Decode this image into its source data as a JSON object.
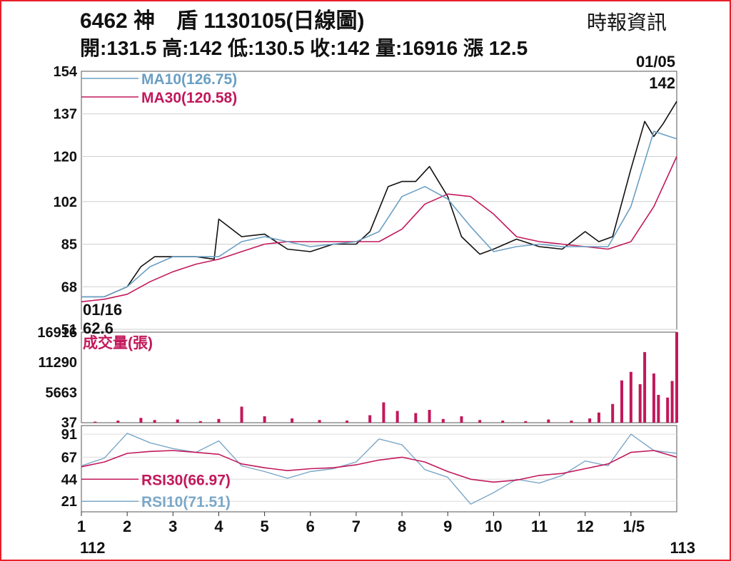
{
  "header": {
    "title": "6462 神　盾 1130105(日線圖)",
    "source": "時報資訊",
    "ohlc": "開:131.5 高:142 低:130.5 收:142 量:16916 漲 12.5"
  },
  "colors": {
    "frame": "#e8202a",
    "ma10": "#6a9fc4",
    "ma30": "#c2185b",
    "volume": "#c2185b",
    "rsi30": "#c2185b",
    "rsi10": "#7ba7c8",
    "candle": "#111111",
    "candle_up": "#c2185b"
  },
  "chart_data": [
    {
      "type": "line",
      "panel": "price",
      "yticks": [
        "154",
        "137",
        "120",
        "102",
        "85",
        "68",
        "51"
      ],
      "ylim": [
        51,
        154
      ],
      "grid": true,
      "legend": [
        "MA10(126.75)",
        "MA30(120.58)"
      ],
      "annotations": {
        "start_date": "01/16",
        "start_price": "62.6",
        "end_date": "01/05",
        "end_price": "142"
      },
      "x_months": [
        "1",
        "2",
        "3",
        "4",
        "5",
        "6",
        "7",
        "8",
        "9",
        "10",
        "11",
        "12",
        "1/5"
      ],
      "x_years": [
        "112",
        "113"
      ],
      "series": [
        {
          "name": "MA10(126.75)",
          "color": "#6a9fc4",
          "x": [
            0,
            0.5,
            1,
            1.5,
            2,
            2.5,
            3,
            3.5,
            4,
            4.5,
            5,
            5.5,
            6,
            6.5,
            7,
            7.5,
            8,
            8.5,
            9,
            9.5,
            10,
            10.5,
            11,
            11.5,
            12,
            12.5,
            13
          ],
          "values": [
            64,
            64,
            68,
            76,
            80,
            80,
            80,
            86,
            88,
            86,
            84,
            85,
            86,
            90,
            104,
            108,
            103,
            92,
            82,
            84,
            85,
            84,
            84,
            84,
            100,
            130,
            127
          ]
        },
        {
          "name": "MA30(120.58)",
          "color": "#c2185b",
          "x": [
            0,
            0.5,
            1,
            1.5,
            2,
            2.5,
            3,
            3.5,
            4,
            4.5,
            5,
            5.5,
            6,
            6.5,
            7,
            7.5,
            8,
            8.5,
            9,
            9.5,
            10,
            10.5,
            11,
            11.5,
            12,
            12.5,
            13
          ],
          "values": [
            62,
            63,
            65,
            70,
            74,
            77,
            79,
            82,
            85,
            86,
            86,
            86,
            86,
            86,
            91,
            101,
            105,
            104,
            97,
            88,
            86,
            85,
            84,
            83,
            86,
            100,
            120
          ]
        },
        {
          "name": "",
          "color": "#111111",
          "x": [
            0,
            0.5,
            1,
            1.3,
            1.6,
            2,
            2.5,
            2.9,
            3,
            3.5,
            4,
            4.5,
            5,
            5.5,
            6,
            6.3,
            6.7,
            7,
            7.3,
            7.6,
            8,
            8.3,
            8.7,
            9,
            9.5,
            10,
            10.5,
            11,
            11.3,
            11.6,
            12,
            12.3,
            12.5,
            12.7,
            13
          ],
          "values": [
            64,
            64,
            68,
            76,
            80,
            80,
            80,
            79,
            95,
            88,
            89,
            83,
            82,
            85,
            85,
            90,
            108,
            110,
            110,
            116,
            104,
            88,
            81,
            83,
            87,
            84,
            83,
            90,
            86,
            88,
            115,
            134,
            128,
            133,
            142
          ]
        }
      ]
    },
    {
      "type": "bar",
      "panel": "volume",
      "title": "成交量(張)",
      "yticks": [
        "16916",
        "11290",
        "5663",
        "37"
      ],
      "ylim": [
        0,
        16916
      ],
      "x": [
        0.3,
        0.8,
        1.3,
        1.6,
        2.1,
        2.6,
        3.0,
        3.5,
        4.0,
        4.6,
        5.2,
        5.8,
        6.3,
        6.6,
        6.9,
        7.3,
        7.6,
        7.9,
        8.3,
        8.7,
        9.2,
        9.7,
        10.2,
        10.7,
        11.1,
        11.3,
        11.6,
        11.8,
        12.0,
        12.2,
        12.3,
        12.5,
        12.6,
        12.8,
        12.9,
        13.0
      ],
      "values": [
        200,
        400,
        900,
        500,
        600,
        300,
        700,
        3000,
        1200,
        800,
        500,
        400,
        1400,
        3800,
        2200,
        1800,
        2400,
        700,
        1200,
        500,
        400,
        300,
        600,
        400,
        800,
        1900,
        3500,
        7900,
        9500,
        7200,
        13200,
        9200,
        5200,
        4700,
        7800,
        16916
      ]
    },
    {
      "type": "line",
      "panel": "rsi",
      "yticks": [
        "91",
        "67",
        "44",
        "21"
      ],
      "ylim": [
        10,
        100
      ],
      "legend": [
        "RSI30(66.97)",
        "RSI10(71.51)"
      ],
      "series": [
        {
          "name": "RSI30(66.97)",
          "color": "#c2185b",
          "x": [
            0,
            0.5,
            1,
            1.5,
            2,
            2.5,
            3,
            3.5,
            4,
            4.5,
            5,
            5.5,
            6,
            6.5,
            7,
            7.5,
            8,
            8.5,
            9,
            9.5,
            10,
            10.5,
            11,
            11.5,
            12,
            12.5,
            13
          ],
          "values": [
            57,
            62,
            71,
            73,
            74,
            72,
            70,
            60,
            56,
            53,
            55,
            56,
            59,
            64,
            67,
            62,
            52,
            44,
            41,
            43,
            48,
            50,
            55,
            60,
            72,
            74,
            67
          ]
        },
        {
          "name": "RSI10(71.51)",
          "color": "#7ba7c8",
          "x": [
            0,
            0.5,
            1,
            1.5,
            2,
            2.5,
            3,
            3.5,
            4,
            4.5,
            5,
            5.5,
            6,
            6.5,
            7,
            7.5,
            8,
            8.5,
            9,
            9.5,
            10,
            10.5,
            11,
            11.5,
            12,
            12.5,
            13
          ],
          "values": [
            58,
            66,
            92,
            82,
            76,
            72,
            84,
            58,
            52,
            45,
            52,
            55,
            62,
            86,
            80,
            54,
            46,
            18,
            30,
            44,
            40,
            48,
            63,
            58,
            91,
            74,
            71
          ]
        }
      ]
    }
  ]
}
